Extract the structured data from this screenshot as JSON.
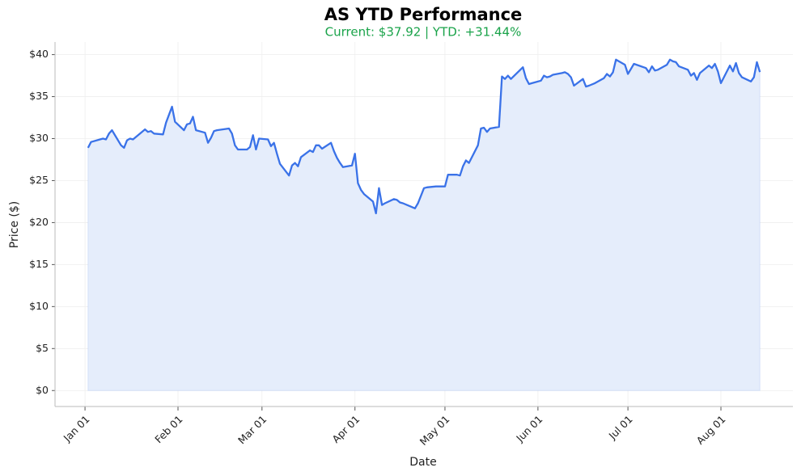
{
  "chart_data": {
    "type": "line",
    "title": "AS YTD Performance",
    "subtitle": "Current: $37.92  |  YTD: +31.44%",
    "subtitle_color": "#1aa34a",
    "xlabel": "Date",
    "ylabel": "Price ($)",
    "grid": true,
    "xlim": [
      "Dec 22",
      "Aug 25"
    ],
    "xticks": [
      "Jan 01",
      "Feb 01",
      "Mar 01",
      "Apr 01",
      "May 01",
      "Jun 01",
      "Jul 01",
      "Aug 01"
    ],
    "ylim": [
      -1.9,
      41.5
    ],
    "yticks": [
      {
        "value": 0,
        "label": "$0"
      },
      {
        "value": 5,
        "label": "$5"
      },
      {
        "value": 10,
        "label": "$10"
      },
      {
        "value": 15,
        "label": "$15"
      },
      {
        "value": 20,
        "label": "$20"
      },
      {
        "value": 25,
        "label": "$25"
      },
      {
        "value": 30,
        "label": "$30"
      },
      {
        "value": 35,
        "label": "$35"
      },
      {
        "value": 40,
        "label": "$40"
      }
    ],
    "x": [
      "Jan 02",
      "Jan 03",
      "Jan 06",
      "Jan 07",
      "Jan 08",
      "Jan 09",
      "Jan 10",
      "Jan 13",
      "Jan 14",
      "Jan 15",
      "Jan 16",
      "Jan 17",
      "Jan 21",
      "Jan 22",
      "Jan 23",
      "Jan 24",
      "Jan 27",
      "Jan 28",
      "Jan 30",
      "Jan 31",
      "Feb 03",
      "Feb 04",
      "Feb 05",
      "Feb 06",
      "Feb 07",
      "Feb 10",
      "Feb 11",
      "Feb 12",
      "Feb 13",
      "Feb 14",
      "Feb 18",
      "Feb 19",
      "Feb 20",
      "Feb 21",
      "Feb 24",
      "Feb 25",
      "Feb 26",
      "Feb 27",
      "Feb 28",
      "Mar 03",
      "Mar 04",
      "Mar 05",
      "Mar 06",
      "Mar 07",
      "Mar 10",
      "Mar 11",
      "Mar 12",
      "Mar 13",
      "Mar 14",
      "Mar 17",
      "Mar 18",
      "Mar 19",
      "Mar 20",
      "Mar 21",
      "Mar 24",
      "Mar 25",
      "Mar 26",
      "Mar 27",
      "Mar 28",
      "Mar 31",
      "Apr 01",
      "Apr 02",
      "Apr 03",
      "Apr 04",
      "Apr 07",
      "Apr 08",
      "Apr 09",
      "Apr 10",
      "Apr 11",
      "Apr 14",
      "Apr 15",
      "Apr 16",
      "Apr 17",
      "Apr 21",
      "Apr 22",
      "Apr 23",
      "Apr 24",
      "Apr 25",
      "Apr 28",
      "May 01",
      "May 02",
      "May 05",
      "May 06",
      "May 07",
      "May 08",
      "May 09",
      "May 12",
      "May 13",
      "May 14",
      "May 15",
      "May 16",
      "May 19",
      "May 20",
      "May 21",
      "May 22",
      "May 23",
      "May 27",
      "May 28",
      "May 29",
      "May 30",
      "Jun 02",
      "Jun 03",
      "Jun 04",
      "Jun 05",
      "Jun 06",
      "Jun 09",
      "Jun 10",
      "Jun 11",
      "Jun 12",
      "Jun 13",
      "Jun 16",
      "Jun 17",
      "Jun 18",
      "Jun 20",
      "Jun 23",
      "Jun 24",
      "Jun 25",
      "Jun 26",
      "Jun 27",
      "Jun 30",
      "Jul 01",
      "Jul 02",
      "Jul 03",
      "Jul 07",
      "Jul 08",
      "Jul 09",
      "Jul 10",
      "Jul 11",
      "Jul 14",
      "Jul 15",
      "Jul 16",
      "Jul 17",
      "Jul 18",
      "Jul 21",
      "Jul 22",
      "Jul 23",
      "Jul 24",
      "Jul 25",
      "Jul 28",
      "Jul 29",
      "Jul 30",
      "Jul 31",
      "Aug 01",
      "Aug 04",
      "Aug 05",
      "Aug 06",
      "Aug 07",
      "Aug 08",
      "Aug 11",
      "Aug 12",
      "Aug 13",
      "Aug 14"
    ],
    "series": [
      {
        "name": "AS",
        "color": "#3a72e8",
        "fill": "#e5edfb",
        "values": [
          28.9,
          29.6,
          29.9,
          30.0,
          29.9,
          30.6,
          31.0,
          29.2,
          28.9,
          29.8,
          30.0,
          29.9,
          31.1,
          30.8,
          30.9,
          30.6,
          30.5,
          31.9,
          33.8,
          32.0,
          31.0,
          31.7,
          31.8,
          32.6,
          31.0,
          30.7,
          29.5,
          30.1,
          30.9,
          31.0,
          31.2,
          30.6,
          29.2,
          28.7,
          28.7,
          29.0,
          30.4,
          28.7,
          30.0,
          29.9,
          29.1,
          29.5,
          28.2,
          27.0,
          25.6,
          26.8,
          27.1,
          26.7,
          27.8,
          28.6,
          28.4,
          29.2,
          29.2,
          28.8,
          29.5,
          28.5,
          27.7,
          27.1,
          26.6,
          26.8,
          28.2,
          24.7,
          23.9,
          23.4,
          22.5,
          21.1,
          24.1,
          22.1,
          22.3,
          22.8,
          22.7,
          22.4,
          22.3,
          21.7,
          22.3,
          23.2,
          24.1,
          24.2,
          24.3,
          24.3,
          25.7,
          25.7,
          25.6,
          26.7,
          27.4,
          27.1,
          29.2,
          31.2,
          31.3,
          30.8,
          31.2,
          31.4,
          37.4,
          37.1,
          37.5,
          37.1,
          38.5,
          37.2,
          36.5,
          36.6,
          36.9,
          37.5,
          37.3,
          37.4,
          37.6,
          37.8,
          37.9,
          37.7,
          37.3,
          36.3,
          37.1,
          36.2,
          36.3,
          36.6,
          37.2,
          37.7,
          37.4,
          37.9,
          39.4,
          38.8,
          37.7,
          38.3,
          38.9,
          38.4,
          37.9,
          38.6,
          38.1,
          38.2,
          38.8,
          39.4,
          39.2,
          39.1,
          38.6,
          38.2,
          37.5,
          37.8,
          37.0,
          37.8,
          38.7,
          38.4,
          38.9,
          38.0,
          36.6,
          38.7,
          38.0,
          39.0,
          37.8,
          37.3,
          36.8,
          37.3,
          39.1,
          37.92
        ]
      }
    ]
  }
}
